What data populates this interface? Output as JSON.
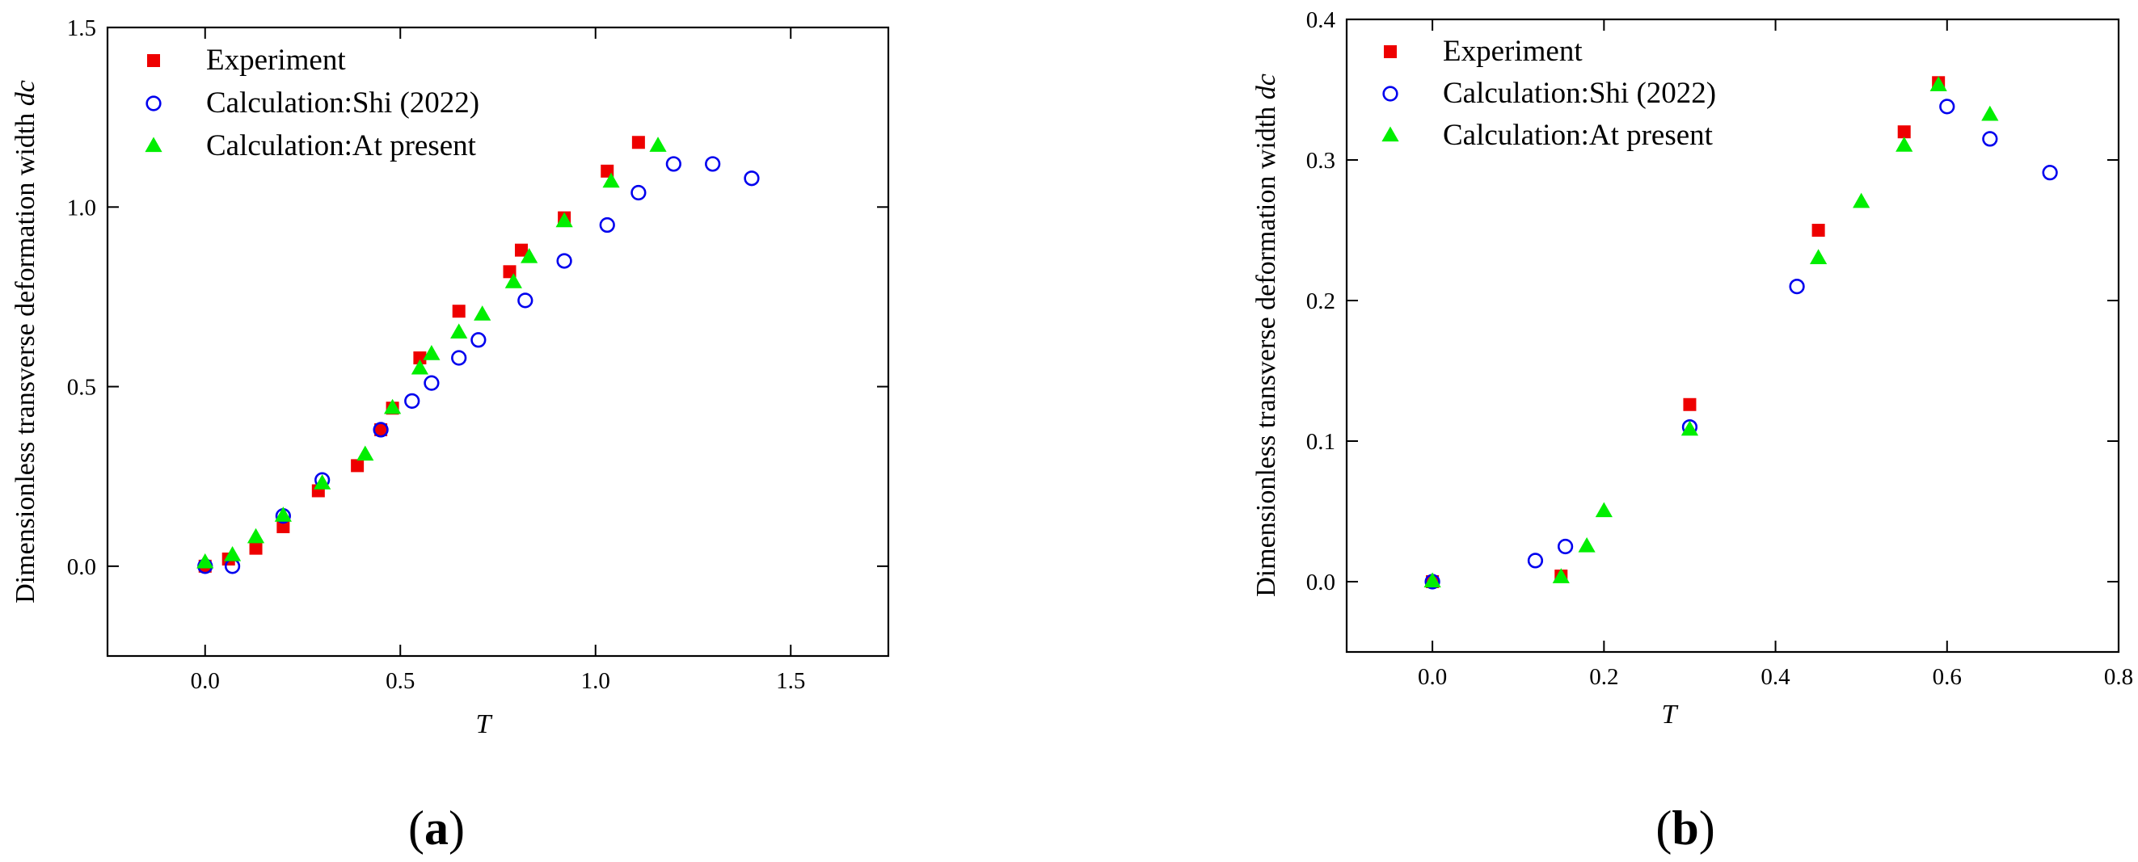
{
  "colors": {
    "experiment": "#ee0000",
    "shi": "#0000ee",
    "present": "#00ee00"
  },
  "chart_data": [
    {
      "type": "scatter",
      "panel_label": "a",
      "xlabel": "T",
      "ylabel_prefix": "Dimensionless transverse deformation width ",
      "ylabel_symbol": "dc",
      "xlim": [
        -0.25,
        1.75
      ],
      "ylim": [
        -0.25,
        1.5
      ],
      "xticks": [
        0.0,
        0.5,
        1.0,
        1.5
      ],
      "yticks": [
        0.0,
        0.5,
        1.0,
        1.5
      ],
      "xtick_labels": [
        "0.0",
        "0.5",
        "1.0",
        "1.5"
      ],
      "ytick_labels": [
        "0.0",
        "0.5",
        "1.0",
        "1.5"
      ],
      "legend_position": "top-left",
      "series": [
        {
          "key": "experiment",
          "name": "Experiment",
          "marker": "square",
          "points": [
            [
              0.0,
              0.0
            ],
            [
              0.06,
              0.02
            ],
            [
              0.13,
              0.05
            ],
            [
              0.2,
              0.11
            ],
            [
              0.29,
              0.21
            ],
            [
              0.39,
              0.28
            ],
            [
              0.45,
              0.38
            ],
            [
              0.48,
              0.44
            ],
            [
              0.55,
              0.58
            ],
            [
              0.65,
              0.71
            ],
            [
              0.78,
              0.82
            ],
            [
              0.81,
              0.88
            ],
            [
              0.92,
              0.97
            ],
            [
              1.03,
              1.1
            ],
            [
              1.11,
              1.18
            ]
          ]
        },
        {
          "key": "shi",
          "name": "Calculation:Shi (2022)",
          "marker": "circle",
          "points": [
            [
              0.0,
              0.0
            ],
            [
              0.07,
              0.0
            ],
            [
              0.2,
              0.14
            ],
            [
              0.3,
              0.24
            ],
            [
              0.45,
              0.38
            ],
            [
              0.53,
              0.46
            ],
            [
              0.58,
              0.51
            ],
            [
              0.65,
              0.58
            ],
            [
              0.7,
              0.63
            ],
            [
              0.82,
              0.74
            ],
            [
              0.92,
              0.85
            ],
            [
              1.03,
              0.95
            ],
            [
              1.11,
              1.04
            ],
            [
              1.2,
              1.12
            ],
            [
              1.3,
              1.12
            ],
            [
              1.4,
              1.08
            ]
          ]
        },
        {
          "key": "present",
          "name": "Calculation:At present",
          "marker": "triangle",
          "points": [
            [
              0.0,
              0.01
            ],
            [
              0.07,
              0.03
            ],
            [
              0.13,
              0.08
            ],
            [
              0.2,
              0.14
            ],
            [
              0.3,
              0.23
            ],
            [
              0.41,
              0.31
            ],
            [
              0.48,
              0.44
            ],
            [
              0.55,
              0.55
            ],
            [
              0.58,
              0.59
            ],
            [
              0.65,
              0.65
            ],
            [
              0.71,
              0.7
            ],
            [
              0.79,
              0.79
            ],
            [
              0.83,
              0.86
            ],
            [
              0.92,
              0.96
            ],
            [
              1.04,
              1.07
            ],
            [
              1.16,
              1.17
            ]
          ]
        }
      ]
    },
    {
      "type": "scatter",
      "panel_label": "b",
      "xlabel": "T",
      "ylabel_prefix": "Dimensionless transverse deformation width ",
      "ylabel_symbol": "dc",
      "xlim": [
        -0.1,
        0.8
      ],
      "ylim": [
        -0.05,
        0.4
      ],
      "xticks": [
        0.0,
        0.2,
        0.4,
        0.6,
        0.8
      ],
      "yticks": [
        0.0,
        0.1,
        0.2,
        0.3,
        0.4
      ],
      "xtick_labels": [
        "0.0",
        "0.2",
        "0.4",
        "0.6",
        "0.8"
      ],
      "ytick_labels": [
        "0.0",
        "0.1",
        "0.2",
        "0.3",
        "0.4"
      ],
      "legend_position": "top-left",
      "series": [
        {
          "key": "experiment",
          "name": "Experiment",
          "marker": "square",
          "points": [
            [
              0.0,
              0.0
            ],
            [
              0.15,
              0.004
            ],
            [
              0.3,
              0.126
            ],
            [
              0.45,
              0.25
            ],
            [
              0.55,
              0.32
            ],
            [
              0.59,
              0.355
            ]
          ]
        },
        {
          "key": "shi",
          "name": "Calculation:Shi (2022)",
          "marker": "circle",
          "points": [
            [
              0.0,
              0.0
            ],
            [
              0.12,
              0.015
            ],
            [
              0.155,
              0.025
            ],
            [
              0.3,
              0.11
            ],
            [
              0.425,
              0.21
            ],
            [
              0.6,
              0.338
            ],
            [
              0.65,
              0.315
            ],
            [
              0.72,
              0.291
            ]
          ]
        },
        {
          "key": "present",
          "name": "Calculation:At present",
          "marker": "triangle",
          "points": [
            [
              0.0,
              0.0
            ],
            [
              0.15,
              0.003
            ],
            [
              0.18,
              0.025
            ],
            [
              0.2,
              0.05
            ],
            [
              0.3,
              0.108
            ],
            [
              0.45,
              0.23
            ],
            [
              0.5,
              0.27
            ],
            [
              0.55,
              0.31
            ],
            [
              0.59,
              0.353
            ],
            [
              0.65,
              0.332
            ]
          ]
        }
      ]
    }
  ]
}
